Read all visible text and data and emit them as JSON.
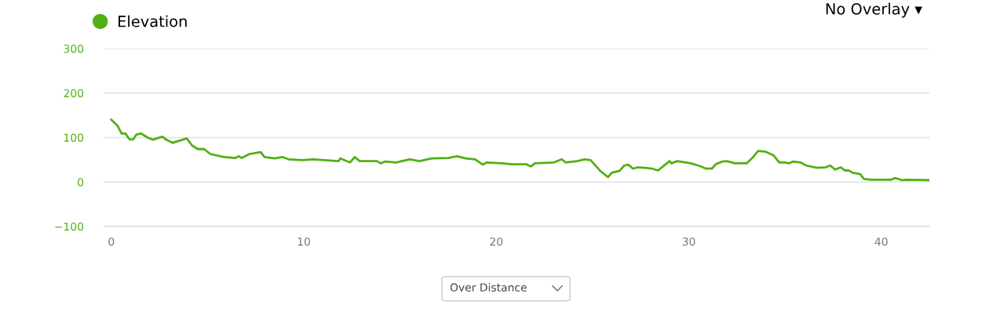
{
  "chart_data": {
    "type": "line",
    "x": [
      0,
      0.33,
      0.53,
      0.73,
      0.94,
      1.14,
      1.31,
      1.55,
      1.88,
      2.16,
      2.37,
      2.65,
      2.86,
      3.18,
      3.39,
      3.92,
      4.2,
      4.49,
      4.82,
      5.14,
      5.84,
      6.45,
      6.61,
      6.78,
      7.18,
      7.47,
      7.76,
      7.96,
      8.49,
      8.9,
      9.22,
      9.92,
      10.5,
      11.8,
      11.9,
      12.4,
      12.65,
      12.9,
      13.8,
      14.0,
      14.2,
      14.8,
      15.5,
      16.0,
      16.65,
      17.5,
      17.96,
      18.4,
      18.9,
      19.3,
      19.5,
      20.3,
      20.8,
      21.55,
      21.8,
      22.0,
      23.0,
      23.4,
      23.6,
      24.2,
      24.6,
      24.9,
      25.4,
      25.8,
      26.0,
      26.4,
      26.65,
      26.86,
      27.1,
      27.35,
      27.7,
      28.1,
      28.4,
      29.0,
      29.1,
      29.4,
      30.1,
      30.5,
      30.9,
      31.2,
      31.4,
      31.75,
      31.96,
      32.4,
      33.0,
      33.3,
      33.6,
      34.0,
      34.4,
      34.7,
      35.0,
      35.2,
      35.4,
      35.8,
      36.1,
      36.65,
      37.1,
      37.35,
      37.6,
      37.9,
      38.1,
      38.3,
      38.5,
      38.9,
      39.1,
      39.5,
      40.5,
      40.7,
      41.1,
      41.35,
      42.5
    ],
    "series": [
      {
        "name": "Elevation",
        "color": "#52b012",
        "values": [
          140,
          126,
          109,
          109,
          96,
          96,
          107,
          109,
          100,
          95,
          98,
          102,
          95,
          88,
          91,
          98,
          82,
          74,
          74,
          63,
          56,
          54,
          58,
          54,
          63,
          65,
          67,
          56,
          53,
          56,
          51,
          49,
          51,
          47,
          53,
          44,
          56,
          47,
          47,
          42,
          46,
          44,
          51,
          47,
          53,
          54,
          58,
          53,
          51,
          39,
          44,
          42,
          40,
          40,
          35,
          42,
          44,
          51,
          44,
          47,
          51,
          49,
          25,
          11,
          21,
          25,
          37,
          39,
          30,
          33,
          32,
          30,
          26,
          47,
          42,
          47,
          42,
          37,
          30,
          30,
          40,
          46,
          47,
          42,
          42,
          54,
          70,
          68,
          60,
          44,
          44,
          42,
          46,
          44,
          37,
          32,
          33,
          37,
          28,
          33,
          26,
          26,
          21,
          18,
          7,
          5,
          5,
          9,
          4,
          5,
          4
        ]
      }
    ],
    "xlim": [
      -0.4,
      42.5
    ],
    "xticks": [
      0,
      10,
      20,
      30,
      40
    ],
    "ylim": [
      -100,
      300
    ],
    "yticks": [
      {
        "value": 300,
        "label": "300"
      },
      {
        "value": 200,
        "label": "200"
      },
      {
        "value": 100,
        "label": "100"
      },
      {
        "value": 0,
        "label": "0"
      },
      {
        "value": -100,
        "label": "−100"
      }
    ],
    "grid": "y",
    "legend": "top left",
    "marker": "none",
    "line_style": "solid",
    "annotations": [
      "No Overlay ▾",
      "Over Distance"
    ]
  }
}
